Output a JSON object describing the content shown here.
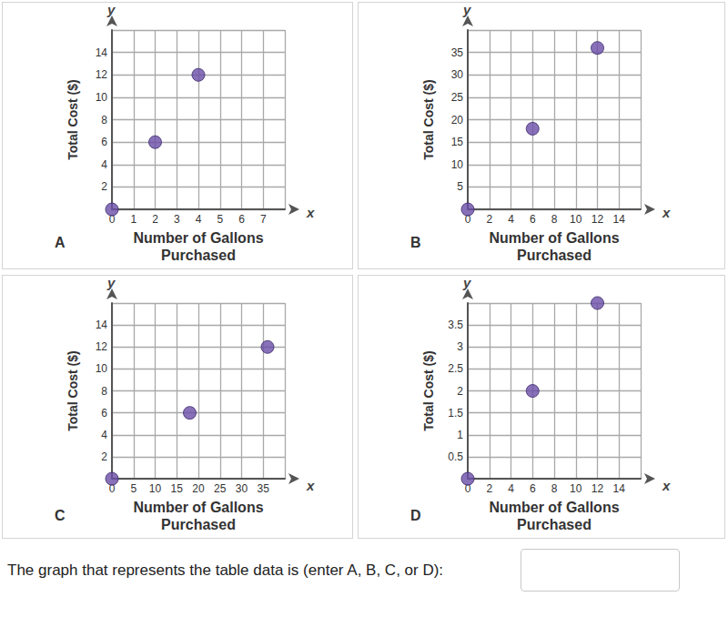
{
  "chart_data": [
    {
      "type": "scatter",
      "title": "A",
      "x_label": "Number of Gallons Purchased",
      "y_label": "Total Cost ($)",
      "annotations": [
        "y",
        "x"
      ],
      "x": [
        0,
        2,
        4
      ],
      "values": [
        0,
        6,
        12
      ],
      "color": "#6a4ea6",
      "marker": "circle",
      "xlim": [
        0,
        8
      ],
      "xticks": [
        0,
        1,
        2,
        3,
        4,
        5,
        6,
        7
      ],
      "ylim": [
        0,
        16
      ],
      "yticks": [
        2,
        4,
        6,
        8,
        10,
        12,
        14
      ],
      "grid": true
    },
    {
      "type": "scatter",
      "title": "B",
      "x_label": "Number of Gallons Purchased",
      "y_label": "Total Cost ($)",
      "annotations": [
        "y",
        "x"
      ],
      "x": [
        0,
        6,
        12
      ],
      "values": [
        0,
        18,
        36
      ],
      "color": "#6a4ea6",
      "marker": "circle",
      "xlim": [
        0,
        16
      ],
      "xticks": [
        0,
        2,
        4,
        6,
        8,
        10,
        12,
        14
      ],
      "ylim": [
        0,
        40
      ],
      "yticks": [
        5,
        10,
        15,
        20,
        25,
        30,
        35
      ],
      "grid": true
    },
    {
      "type": "scatter",
      "title": "C",
      "x_label": "Number of Gallons Purchased",
      "y_label": "Total Cost ($)",
      "annotations": [
        "y",
        "x"
      ],
      "x": [
        0,
        18,
        36
      ],
      "values": [
        0,
        6,
        12
      ],
      "color": "#6a4ea6",
      "marker": "circle",
      "xlim": [
        0,
        40
      ],
      "xticks": [
        0,
        5,
        10,
        15,
        20,
        25,
        30,
        35
      ],
      "ylim": [
        0,
        16
      ],
      "yticks": [
        2,
        4,
        6,
        8,
        10,
        12,
        14
      ],
      "grid": true
    },
    {
      "type": "scatter",
      "title": "D",
      "x_label": "Number of Gallons Purchased",
      "y_label": "Total Cost ($)",
      "annotations": [
        "y",
        "x"
      ],
      "x": [
        0,
        6,
        12
      ],
      "values": [
        0,
        2,
        4
      ],
      "color": "#6a4ea6",
      "marker": "circle",
      "xlim": [
        0,
        16
      ],
      "xticks": [
        0,
        2,
        4,
        6,
        8,
        10,
        12,
        14
      ],
      "ylim": [
        0,
        4
      ],
      "yticks": [
        0.5,
        1,
        1.5,
        2,
        2.5,
        3,
        3.5
      ],
      "grid": true
    }
  ],
  "prompt": "The graph that represents the table data is (enter A, B, C, or D):"
}
